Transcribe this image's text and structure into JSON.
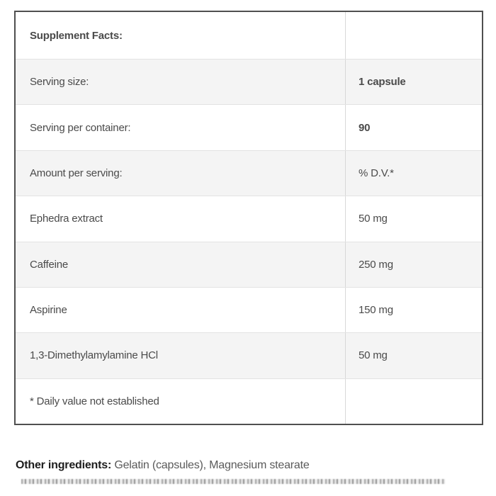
{
  "table": {
    "rows": [
      {
        "label": "Supplement Facts:",
        "value": ""
      },
      {
        "label": "Serving size:",
        "value": "1 capsule"
      },
      {
        "label": "Serving per container:",
        "value": "90"
      },
      {
        "label": "Amount per serving:",
        "value": "% D.V.*"
      },
      {
        "label": "Ephedra extract",
        "value": "50 mg"
      },
      {
        "label": "Caffeine",
        "value": "250 mg"
      },
      {
        "label": "Aspirine",
        "value": "150 mg"
      },
      {
        "label": "1,3-Dimethylamylamine HCl",
        "value": "50 mg"
      },
      {
        "label": "* Daily value not established",
        "value": ""
      }
    ]
  },
  "footer": {
    "other_ingredients_label": "Other ingredients:",
    "other_ingredients_value": " Gelatin (capsules), Magnesium stearate"
  },
  "colors": {
    "border": "#4f4f4f",
    "shaded_row": "#f4f4f4",
    "separator": "#e3e3e3",
    "label_text": "#4a4a4a",
    "bold_text": "#1d1d1d"
  }
}
